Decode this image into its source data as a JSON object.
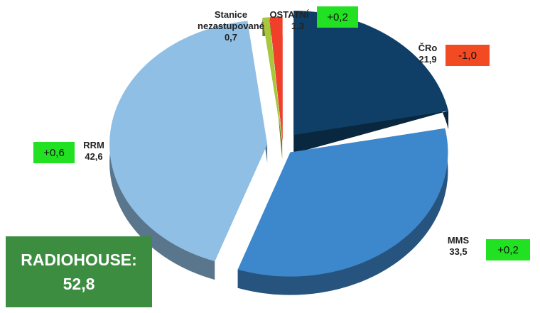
{
  "chart_data": {
    "type": "pie",
    "title": "",
    "slices": [
      {
        "name": "ČRo",
        "value": 21.9,
        "label": "21,9",
        "delta": "-1,0",
        "color": "#0f3f66"
      },
      {
        "name": "MMS",
        "value": 33.5,
        "label": "33,5",
        "delta": "+0,2",
        "color": "#3d87cc"
      },
      {
        "name": "RRM",
        "value": 42.6,
        "label": "42,6",
        "delta": "+0,6",
        "color": "#8fbfe4"
      },
      {
        "name": "Stanice nezastupované",
        "value": 0.7,
        "label": "0,7",
        "delta": "",
        "color": "#a9c73a"
      },
      {
        "name": "OSTATNÍ",
        "value": 1.3,
        "label": "1,3",
        "delta": "+0,2",
        "color": "#f0402a"
      }
    ],
    "positive_delta_color": "#22e022",
    "negative_delta_color": "#f24a23"
  },
  "total": {
    "label": "RADIOHOUSE:",
    "value": "52,8",
    "color": "#3c8d3f"
  }
}
